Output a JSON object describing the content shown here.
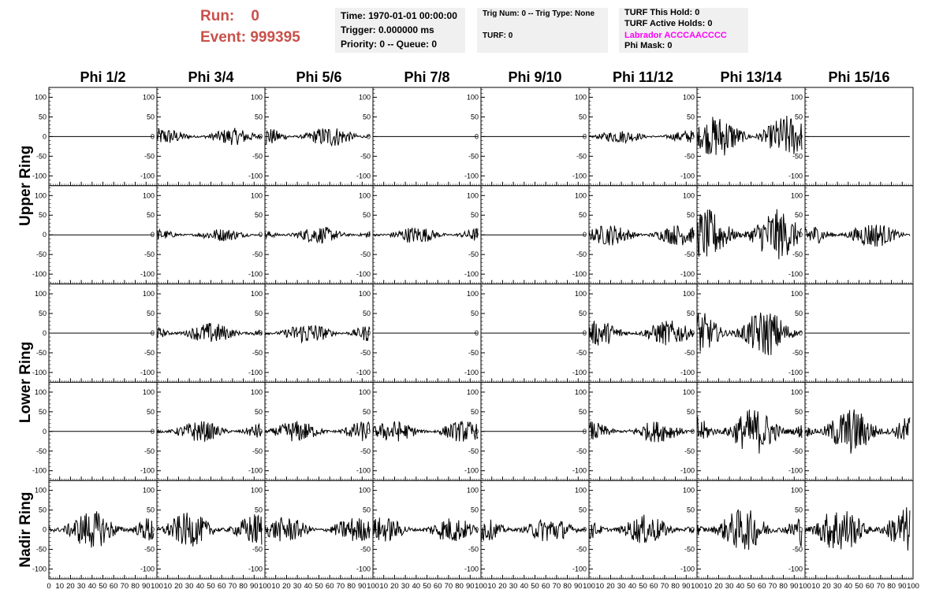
{
  "header": {
    "run_label": "Run:",
    "run_value": "0",
    "event_label": "Event:",
    "event_value": "999395",
    "time_text": "Time: 1970-01-01 00:00:00",
    "trigger_text": "Trigger: 0.000000 ms",
    "priority_text": "Priority: 0 -- Queue: 0",
    "trig_num_text": "Trig Num: 0 -- Trig Type: None",
    "turf_text": "TURF: 0",
    "turf_hold_text": "TURF This Hold: 0",
    "turf_active_text": "TURF Active Holds: 0",
    "labrador_text": "Labrador ACCCAACCCC",
    "phi_mask_text": "Phi Mask: 0",
    "labrador_color": "#ff00ff",
    "run_color": "#c9504a",
    "panel_bg": "#f0f0f0"
  },
  "grid": {
    "columns": [
      "Phi 1/2",
      "Phi 3/4",
      "Phi 5/6",
      "Phi 7/8",
      "Phi 9/10",
      "Phi 11/12",
      "Phi 13/14",
      "Phi 15/16"
    ],
    "rows": [
      "Upper Ring",
      "Lower Ring",
      "Nadir Ring"
    ]
  },
  "chart_data": {
    "type": "line",
    "xlim": [
      0,
      100
    ],
    "ylim": [
      -125,
      125
    ],
    "y_ticks": [
      -100,
      -50,
      0,
      50,
      100
    ],
    "x_ticks": [
      0,
      10,
      20,
      30,
      40,
      50,
      60,
      70,
      80,
      90,
      100
    ],
    "x_tick_labels": [
      "0",
      "10",
      "20",
      "30",
      "40",
      "50",
      "60",
      "70",
      "80",
      "90",
      "100"
    ],
    "subrows": 5,
    "amplitudes": [
      [
        0,
        20,
        25,
        0,
        0,
        15,
        50,
        0
      ],
      [
        0,
        15,
        20,
        20,
        0,
        25,
        60,
        30
      ],
      [
        0,
        25,
        25,
        0,
        0,
        30,
        55,
        0
      ],
      [
        0,
        25,
        25,
        25,
        0,
        25,
        55,
        55
      ],
      [
        45,
        40,
        30,
        30,
        30,
        35,
        50,
        55
      ]
    ]
  }
}
